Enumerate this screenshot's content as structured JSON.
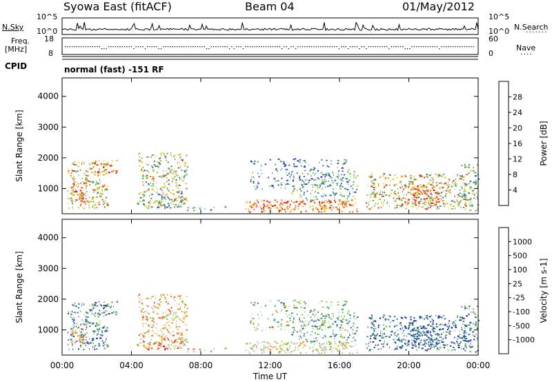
{
  "header": {
    "station": "Syowa East (fitACF)",
    "beam": "Beam 04",
    "date": "01/May/2012"
  },
  "strip_labels": {
    "nsky": "N.Sky",
    "nsearch": "N.Search",
    "freq_1": "Freq.",
    "freq_2": "[MHz]",
    "nave": "Nave",
    "cpid": "CPID",
    "log_hi": "10^5",
    "log_lo": "10^0",
    "freq_hi": "18",
    "freq_lo": "8",
    "nave_hi": "60",
    "nave_lo": "0"
  },
  "cpid_text": "normal (fast) -151 RF",
  "colors": {
    "power": [
      "#1a1aff",
      "#2a4fbf",
      "#3a7a8c",
      "#4f9e78",
      "#7fc34a",
      "#e0d21a",
      "#f7a416",
      "#f26b12",
      "#e32a0f",
      "#ff0000"
    ],
    "velocity": [
      "#2233aa",
      "#2e66b8",
      "#357f8a",
      "#3f9a5c",
      "#73c83b",
      "#c8c8c0",
      "#f5a623",
      "#f07a12",
      "#e8451a",
      "#e00000"
    ]
  },
  "chart_data": [
    {
      "type": "heatmap",
      "name": "Power",
      "ylabel": "Slant Range [km]",
      "xlabel": "Time UT",
      "ylim": [
        180,
        4600
      ],
      "yticks": [
        1000,
        2000,
        3000,
        4000
      ],
      "xticks": [
        "00:00",
        "04:00",
        "08:00",
        "12:00",
        "16:00",
        "20:00",
        "00:00"
      ],
      "colorbar": {
        "label": "Power [dB]",
        "min": 0,
        "max": 32,
        "ticks": [
          "4",
          "8",
          "12",
          "16",
          "20",
          "24",
          "28"
        ]
      }
    },
    {
      "type": "heatmap",
      "name": "Velocity",
      "ylabel": "Slant Range [km]",
      "xlabel": "Time UT",
      "ylim": [
        180,
        4600
      ],
      "yticks": [
        1000,
        2000,
        3000,
        4000
      ],
      "xticks": [
        "00:00",
        "04:00",
        "08:00",
        "12:00",
        "16:00",
        "20:00",
        "00:00"
      ],
      "colorbar": {
        "label": "Velocity [m s-1]",
        "ticks": [
          "1000",
          "500",
          "100",
          "25",
          "-25",
          "-100",
          "-500",
          "-1000"
        ]
      }
    }
  ]
}
